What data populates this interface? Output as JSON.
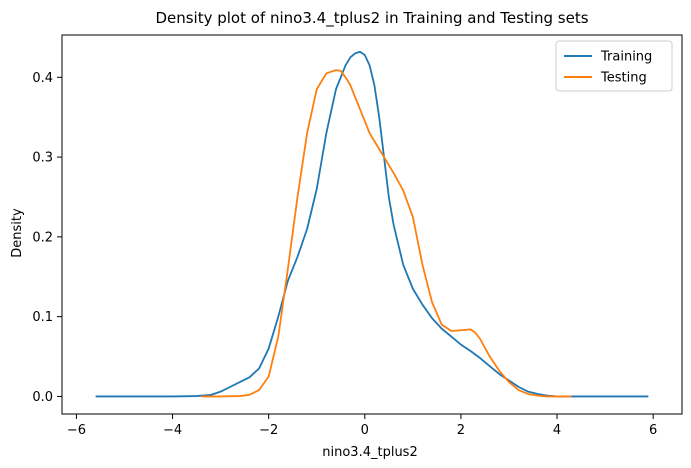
{
  "chart_data": {
    "type": "line",
    "title": "Density plot of nino3.4_tplus2 in Training and Testing sets",
    "xlabel": "nino3.4_tplus2",
    "ylabel": "Density",
    "xlim": [
      -6.3,
      6.6
    ],
    "ylim": [
      -0.022,
      0.453
    ],
    "xticks": [
      -6,
      -4,
      -2,
      0,
      2,
      4,
      6
    ],
    "xtick_labels": [
      "−6",
      "−4",
      "−2",
      "0",
      "2",
      "4",
      "6"
    ],
    "yticks": [
      0.0,
      0.1,
      0.2,
      0.3,
      0.4
    ],
    "ytick_labels": [
      "0.0",
      "0.1",
      "0.2",
      "0.3",
      "0.4"
    ],
    "grid": false,
    "legend_position": "top-right",
    "series": [
      {
        "name": "Training",
        "color": "#1f77b4",
        "x": [
          -5.6,
          -4.0,
          -3.5,
          -3.2,
          -3.0,
          -2.8,
          -2.6,
          -2.4,
          -2.2,
          -2.0,
          -1.8,
          -1.6,
          -1.4,
          -1.2,
          -1.0,
          -0.8,
          -0.6,
          -0.4,
          -0.3,
          -0.2,
          -0.1,
          0.0,
          0.1,
          0.2,
          0.3,
          0.4,
          0.5,
          0.6,
          0.8,
          1.0,
          1.2,
          1.4,
          1.6,
          1.8,
          2.0,
          2.2,
          2.4,
          2.6,
          2.8,
          3.0,
          3.2,
          3.4,
          3.6,
          3.8,
          4.0,
          4.5,
          5.0,
          5.9
        ],
        "y": [
          0.0,
          0.0,
          0.0005,
          0.002,
          0.006,
          0.012,
          0.018,
          0.024,
          0.035,
          0.06,
          0.1,
          0.145,
          0.175,
          0.21,
          0.26,
          0.33,
          0.385,
          0.415,
          0.425,
          0.43,
          0.432,
          0.428,
          0.415,
          0.39,
          0.35,
          0.3,
          0.25,
          0.215,
          0.165,
          0.135,
          0.115,
          0.098,
          0.085,
          0.075,
          0.065,
          0.057,
          0.048,
          0.038,
          0.028,
          0.02,
          0.012,
          0.006,
          0.003,
          0.001,
          0.0,
          0.0,
          0.0,
          0.0
        ]
      },
      {
        "name": "Testing",
        "color": "#ff7f0e",
        "x": [
          -3.4,
          -3.0,
          -2.6,
          -2.4,
          -2.2,
          -2.0,
          -1.8,
          -1.6,
          -1.4,
          -1.2,
          -1.0,
          -0.8,
          -0.6,
          -0.5,
          -0.4,
          -0.3,
          -0.2,
          -0.1,
          0.0,
          0.1,
          0.2,
          0.4,
          0.6,
          0.8,
          1.0,
          1.2,
          1.4,
          1.6,
          1.8,
          2.0,
          2.2,
          2.3,
          2.4,
          2.6,
          2.8,
          3.0,
          3.2,
          3.4,
          3.6,
          3.8,
          4.0,
          4.3
        ],
        "y": [
          0.0,
          0.0,
          0.0005,
          0.002,
          0.008,
          0.025,
          0.075,
          0.16,
          0.25,
          0.33,
          0.385,
          0.405,
          0.409,
          0.408,
          0.4,
          0.39,
          0.375,
          0.36,
          0.345,
          0.33,
          0.32,
          0.3,
          0.28,
          0.258,
          0.225,
          0.165,
          0.118,
          0.09,
          0.082,
          0.083,
          0.084,
          0.08,
          0.072,
          0.05,
          0.032,
          0.018,
          0.008,
          0.003,
          0.001,
          0.0,
          0.0,
          0.0
        ]
      }
    ]
  }
}
